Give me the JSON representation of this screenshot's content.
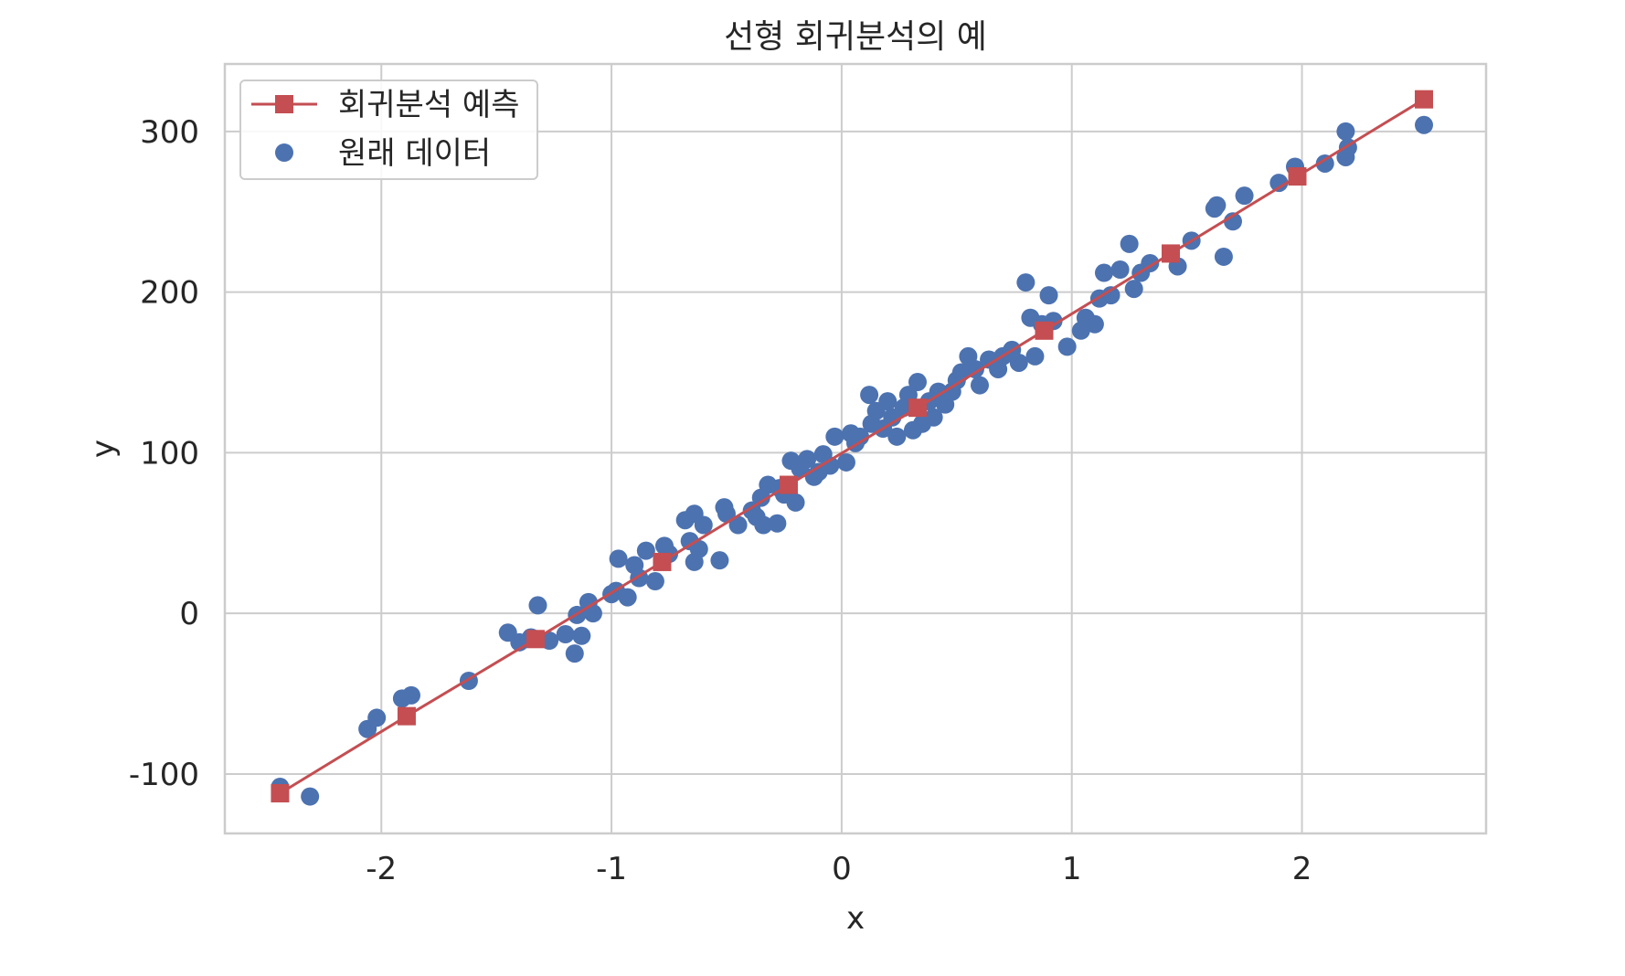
{
  "chart_data": {
    "type": "scatter",
    "title": "선형 회귀분석의 예",
    "xlabel": "x",
    "ylabel": "y",
    "xlim": [
      -2.68,
      2.8
    ],
    "ylim": [
      -137,
      342
    ],
    "grid": true,
    "legend_position": "top-left",
    "xticks": [
      -2,
      -1,
      0,
      1,
      2
    ],
    "yticks": [
      -100,
      0,
      100,
      200,
      300
    ],
    "series": [
      {
        "name": "회귀분석 예측",
        "kind": "line-marker",
        "marker": "square",
        "color": "#c44e52",
        "x": [
          -2.44,
          -1.89,
          -1.33,
          -0.78,
          -0.23,
          0.33,
          0.88,
          1.43,
          1.98,
          2.53
        ],
        "y": [
          -112,
          -64,
          -16,
          32,
          80,
          128,
          176,
          224,
          272,
          320
        ]
      },
      {
        "name": "원래 데이터",
        "kind": "scatter",
        "marker": "circle",
        "color": "#4c72b0",
        "x": [
          -2.44,
          -2.31,
          -2.06,
          -2.02,
          -1.91,
          -1.87,
          -1.62,
          -1.45,
          -1.4,
          -1.35,
          -1.32,
          -1.27,
          -1.2,
          -1.16,
          -1.15,
          -1.13,
          -1.1,
          -1.08,
          -1.0,
          -0.98,
          -0.97,
          -0.93,
          -0.9,
          -0.88,
          -0.85,
          -0.81,
          -0.77,
          -0.75,
          -0.68,
          -0.66,
          -0.64,
          -0.64,
          -0.62,
          -0.6,
          -0.53,
          -0.51,
          -0.5,
          -0.45,
          -0.39,
          -0.37,
          -0.35,
          -0.34,
          -0.32,
          -0.28,
          -0.27,
          -0.25,
          -0.22,
          -0.2,
          -0.18,
          -0.15,
          -0.12,
          -0.1,
          -0.08,
          -0.05,
          -0.03,
          0.02,
          0.04,
          0.06,
          0.08,
          0.12,
          0.13,
          0.15,
          0.18,
          0.2,
          0.22,
          0.24,
          0.27,
          0.29,
          0.31,
          0.33,
          0.35,
          0.38,
          0.4,
          0.42,
          0.45,
          0.48,
          0.5,
          0.52,
          0.55,
          0.58,
          0.6,
          0.64,
          0.68,
          0.7,
          0.74,
          0.77,
          0.8,
          0.82,
          0.84,
          0.87,
          0.9,
          0.92,
          0.98,
          1.04,
          1.06,
          1.1,
          1.12,
          1.14,
          1.17,
          1.21,
          1.25,
          1.27,
          1.3,
          1.34,
          1.46,
          1.52,
          1.62,
          1.63,
          1.66,
          1.7,
          1.75,
          1.9,
          1.97,
          2.1,
          2.19,
          2.19,
          2.2,
          2.53
        ],
        "y": [
          -108,
          -114,
          -72,
          -65,
          -53,
          -51,
          -42,
          -12,
          -18,
          -15,
          5,
          -17,
          -13,
          -25,
          -1,
          -14,
          7,
          0,
          12,
          14,
          34,
          10,
          30,
          22,
          39,
          20,
          42,
          37,
          58,
          45,
          32,
          62,
          40,
          55,
          33,
          66,
          62,
          55,
          64,
          60,
          72,
          55,
          80,
          56,
          78,
          74,
          95,
          69,
          90,
          96,
          85,
          88,
          99,
          92,
          110,
          94,
          112,
          106,
          110,
          136,
          118,
          126,
          115,
          132,
          122,
          110,
          128,
          136,
          114,
          144,
          118,
          132,
          122,
          138,
          130,
          138,
          145,
          150,
          160,
          152,
          142,
          158,
          152,
          160,
          164,
          156,
          206,
          184,
          160,
          180,
          198,
          182,
          166,
          176,
          184,
          180,
          196,
          212,
          198,
          214,
          230,
          202,
          212,
          218,
          216,
          232,
          252,
          254,
          222,
          244,
          260,
          268,
          278,
          280,
          300,
          284,
          290,
          304
        ]
      }
    ]
  }
}
